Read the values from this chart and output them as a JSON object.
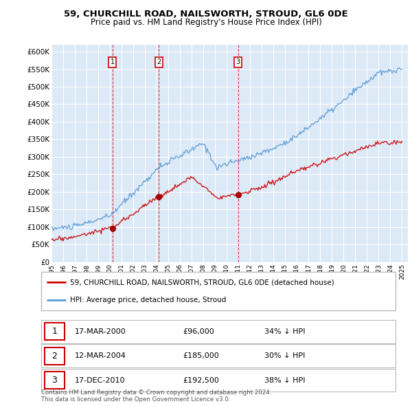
{
  "title": "59, CHURCHILL ROAD, NAILSWORTH, STROUD, GL6 0DE",
  "subtitle": "Price paid vs. HM Land Registry's House Price Index (HPI)",
  "ylabel_ticks": [
    "£0",
    "£50K",
    "£100K",
    "£150K",
    "£200K",
    "£250K",
    "£300K",
    "£350K",
    "£400K",
    "£450K",
    "£500K",
    "£550K",
    "£600K"
  ],
  "ytick_vals": [
    0,
    50000,
    100000,
    150000,
    200000,
    250000,
    300000,
    350000,
    400000,
    450000,
    500000,
    550000,
    600000
  ],
  "background_color": "#ffffff",
  "plot_bg_color": "#dce9f7",
  "grid_color": "#ffffff",
  "hpi_color": "#5b9bd5",
  "price_color": "#cc0000",
  "vline_color": "#cc0000",
  "transactions": [
    {
      "date": 2000.21,
      "price": 96000,
      "label": "1"
    },
    {
      "date": 2004.19,
      "price": 185000,
      "label": "2"
    },
    {
      "date": 2010.96,
      "price": 192500,
      "label": "3"
    }
  ],
  "transaction_labels": [
    {
      "num": "1",
      "date": "17-MAR-2000",
      "price": "£96,000",
      "note": "34% ↓ HPI"
    },
    {
      "num": "2",
      "date": "12-MAR-2004",
      "price": "£185,000",
      "note": "30% ↓ HPI"
    },
    {
      "num": "3",
      "date": "17-DEC-2010",
      "price": "£192,500",
      "note": "38% ↓ HPI"
    }
  ],
  "legend_house": "59, CHURCHILL ROAD, NAILSWORTH, STROUD, GL6 0DE (detached house)",
  "legend_hpi": "HPI: Average price, detached house, Stroud",
  "footer": "Contains HM Land Registry data © Crown copyright and database right 2024.\nThis data is licensed under the Open Government Licence v3.0.",
  "xmin": 1995,
  "xmax": 2025.5,
  "ymin": 0,
  "ymax": 620000
}
